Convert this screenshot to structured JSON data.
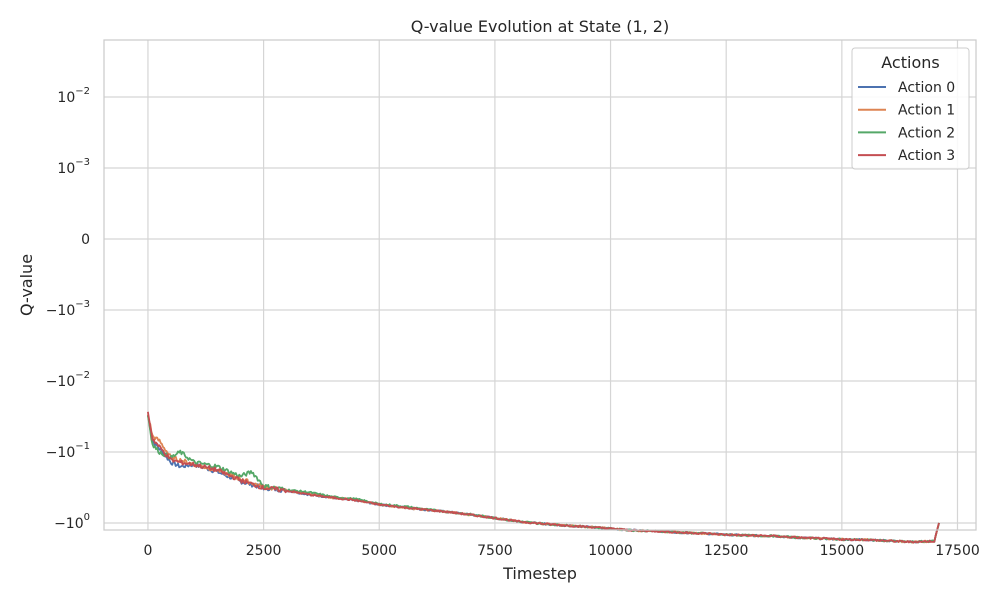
{
  "chart_data": {
    "type": "line",
    "title": "Q-value Evolution at State (1, 2)",
    "xlabel": "Timestep",
    "ylabel": "Q-value",
    "yscale": "symlog",
    "xlim": [
      -950,
      17900
    ],
    "x_ticks": [
      0,
      2500,
      5000,
      7500,
      10000,
      12500,
      15000,
      17500
    ],
    "x_tick_labels": [
      "0",
      "2500",
      "5000",
      "7500",
      "10000",
      "12500",
      "15000",
      "17500"
    ],
    "y_ticks": [
      {
        "value": 0.01,
        "base": "10",
        "exp": "−2",
        "sign": ""
      },
      {
        "value": 0.001,
        "base": "10",
        "exp": "−3",
        "sign": ""
      },
      {
        "value": 0,
        "base": "0",
        "exp": "",
        "sign": ""
      },
      {
        "value": -0.001,
        "base": "10",
        "exp": "−3",
        "sign": "−"
      },
      {
        "value": -0.01,
        "base": "10",
        "exp": "−2",
        "sign": "−"
      },
      {
        "value": -0.1,
        "base": "10",
        "exp": "−1",
        "sign": "−"
      },
      {
        "value": -1,
        "base": "10",
        "exp": "0",
        "sign": "−"
      }
    ],
    "grid": true,
    "legend": {
      "title": "Actions",
      "position": "top-right"
    },
    "series": [
      {
        "name": "Action 0",
        "color": "#4c72b0",
        "x": [
          0,
          100,
          250,
          500,
          700,
          1000,
          1500,
          2000,
          2500,
          3000,
          3500,
          4000,
          4500,
          5000,
          5500,
          6000,
          6500,
          7000,
          7500,
          8000,
          8500,
          9000,
          9500,
          10000,
          10500,
          11000,
          11500,
          12000,
          12500,
          13000,
          13500,
          14000,
          14500,
          15000,
          15500,
          16000,
          16500,
          17000,
          17100
        ],
        "y": [
          -0.03,
          -0.07,
          -0.09,
          -0.14,
          -0.16,
          -0.15,
          -0.19,
          -0.26,
          -0.32,
          -0.35,
          -0.4,
          -0.44,
          -0.48,
          -0.55,
          -0.6,
          -0.65,
          -0.7,
          -0.77,
          -0.85,
          -0.95,
          -1.02,
          -1.08,
          -1.13,
          -1.2,
          -1.27,
          -1.3,
          -1.36,
          -1.4,
          -1.46,
          -1.5,
          -1.52,
          -1.6,
          -1.65,
          -1.7,
          -1.72,
          -1.78,
          -1.85,
          -1.8,
          -1.0
        ]
      },
      {
        "name": "Action 1",
        "color": "#dd8452",
        "x": [
          0,
          100,
          250,
          500,
          700,
          1000,
          1500,
          2000,
          2500,
          3000,
          3500,
          4000,
          4500,
          5000,
          5500,
          6000,
          6500,
          7000,
          7500,
          8000,
          8500,
          9000,
          9500,
          10000,
          10500,
          11000,
          11500,
          12000,
          12500,
          13000,
          13500,
          14000,
          14500,
          15000,
          15500,
          16000,
          16500,
          17000,
          17100
        ],
        "y": [
          -0.03,
          -0.06,
          -0.07,
          -0.12,
          -0.13,
          -0.15,
          -0.18,
          -0.24,
          -0.31,
          -0.35,
          -0.39,
          -0.44,
          -0.47,
          -0.55,
          -0.6,
          -0.65,
          -0.7,
          -0.77,
          -0.85,
          -0.95,
          -1.02,
          -1.08,
          -1.13,
          -1.2,
          -1.27,
          -1.3,
          -1.36,
          -1.4,
          -1.46,
          -1.5,
          -1.52,
          -1.6,
          -1.65,
          -1.7,
          -1.72,
          -1.78,
          -1.85,
          -1.8,
          -1.0
        ]
      },
      {
        "name": "Action 2",
        "color": "#55a868",
        "x": [
          0,
          100,
          250,
          500,
          700,
          1000,
          1500,
          2000,
          2250,
          2500,
          3000,
          3500,
          4000,
          4500,
          5000,
          5500,
          6000,
          6500,
          7000,
          7500,
          8000,
          8500,
          9000,
          9500,
          10000,
          10500,
          11000,
          11500,
          12000,
          12500,
          13000,
          13500,
          14000,
          14500,
          15000,
          15500,
          16000,
          16500,
          17000,
          17100
        ],
        "y": [
          -0.03,
          -0.08,
          -0.1,
          -0.12,
          -0.1,
          -0.14,
          -0.16,
          -0.22,
          -0.19,
          -0.3,
          -0.34,
          -0.37,
          -0.43,
          -0.46,
          -0.54,
          -0.58,
          -0.64,
          -0.7,
          -0.76,
          -0.85,
          -0.95,
          -1.02,
          -1.08,
          -1.13,
          -1.2,
          -1.27,
          -1.3,
          -1.36,
          -1.4,
          -1.46,
          -1.5,
          -1.52,
          -1.6,
          -1.65,
          -1.7,
          -1.72,
          -1.78,
          -1.85,
          -1.8,
          -1.0
        ]
      },
      {
        "name": "Action 3",
        "color": "#c44e52",
        "x": [
          0,
          100,
          250,
          500,
          700,
          1000,
          1500,
          2000,
          2500,
          3000,
          3500,
          4000,
          4500,
          5000,
          5500,
          6000,
          6500,
          7000,
          7500,
          8000,
          8500,
          9000,
          9500,
          10000,
          10500,
          11000,
          11500,
          12000,
          12500,
          13000,
          13500,
          14000,
          14500,
          15000,
          15500,
          16000,
          16500,
          17000,
          17100
        ],
        "y": [
          -0.028,
          -0.065,
          -0.085,
          -0.13,
          -0.14,
          -0.15,
          -0.18,
          -0.25,
          -0.32,
          -0.35,
          -0.4,
          -0.44,
          -0.48,
          -0.55,
          -0.6,
          -0.65,
          -0.7,
          -0.77,
          -0.85,
          -0.95,
          -1.02,
          -1.08,
          -1.13,
          -1.2,
          -1.27,
          -1.3,
          -1.36,
          -1.4,
          -1.46,
          -1.5,
          -1.52,
          -1.6,
          -1.65,
          -1.7,
          -1.72,
          -1.78,
          -1.85,
          -1.8,
          -1.0
        ]
      }
    ]
  }
}
